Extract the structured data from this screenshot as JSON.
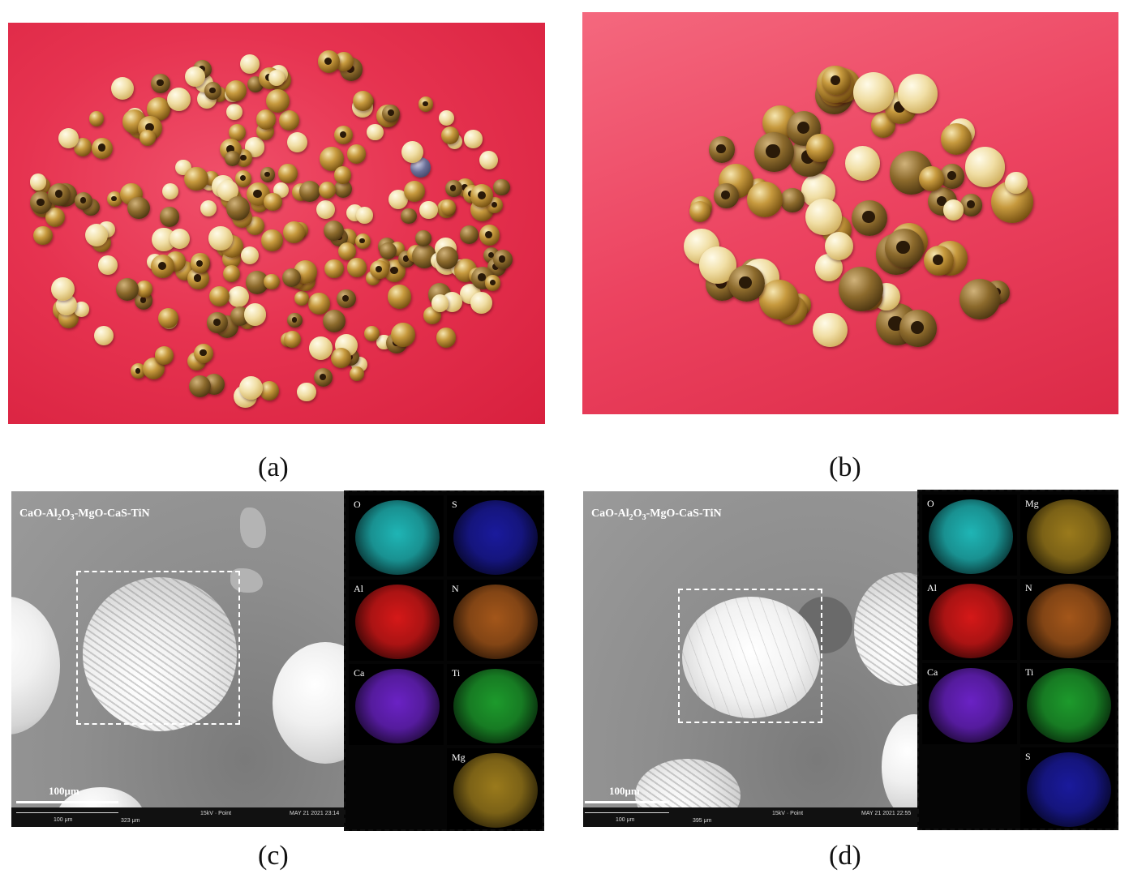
{
  "captions": {
    "a": "(a)",
    "b": "(b)",
    "c": "(c)",
    "d": "(d)"
  },
  "panel_c": {
    "formula_parts": [
      "CaO-Al",
      "2",
      "O",
      "3",
      "-MgO-CaS-TiN"
    ],
    "scale_label": "100μm",
    "info": {
      "scale": "100 μm",
      "width": "323 μm",
      "mode": "15kV · Point",
      "date": "MAY 21 2021 23:14"
    },
    "maps": [
      "O",
      "S",
      "Al",
      "N",
      "Ca",
      "Ti",
      "Mg"
    ]
  },
  "panel_d": {
    "formula_parts": [
      "CaO-Al",
      "2",
      "O",
      "3",
      "-MgO-CaS-TiN"
    ],
    "scale_label": "100μm",
    "info": {
      "scale": "100 μm",
      "width": "395 μm",
      "mode": "15kV · Point",
      "date": "MAY 21 2021 22:55"
    },
    "maps": [
      "O",
      "Mg",
      "Al",
      "N",
      "Ca",
      "Ti",
      "S"
    ]
  },
  "colors": {
    "O": "#1fb5b5",
    "S": "#1a1a9c",
    "Al": "#d51818",
    "N": "#a3561a",
    "Ca": "#6a22c4",
    "Ti": "#1d9a2c",
    "Mg": "#9a7a1c"
  }
}
